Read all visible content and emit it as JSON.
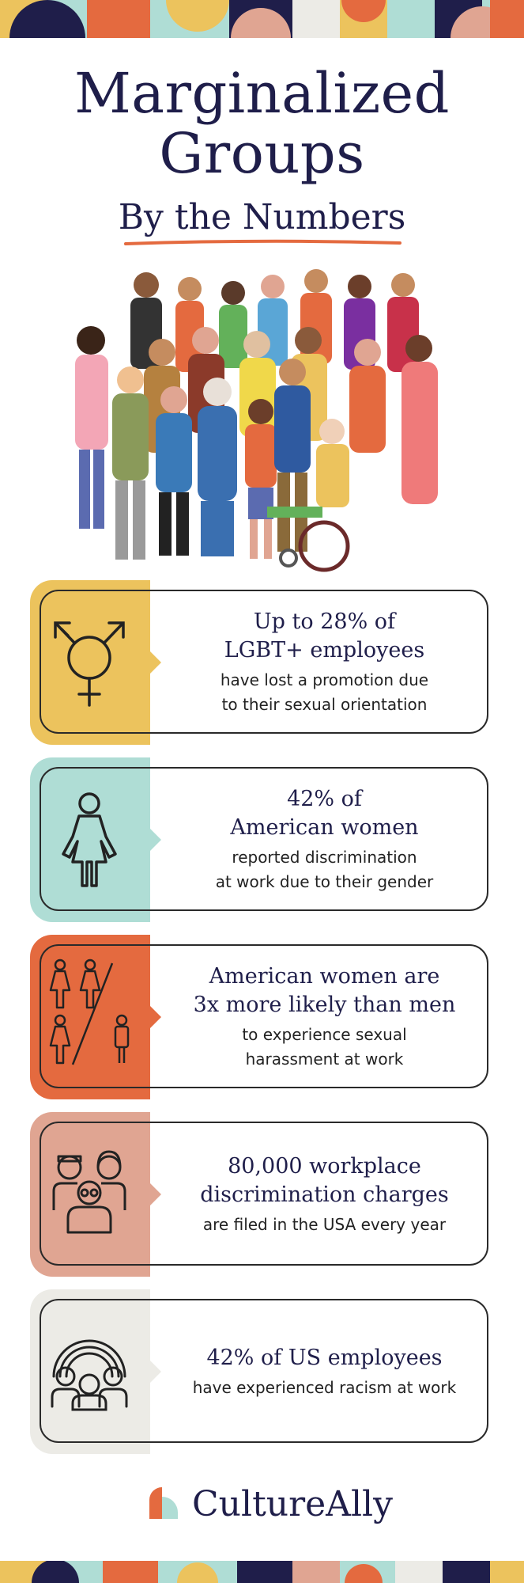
{
  "colors": {
    "navy": "#1f1e4a",
    "yellow": "#ecc35d",
    "mint": "#afddd5",
    "orange": "#e46a3f",
    "salmon": "#e0a592",
    "stone": "#ecebe6"
  },
  "header": {
    "title_line1": "Marginalized",
    "title_line2": "Groups",
    "subtitle": "By the Numbers"
  },
  "illustration": {
    "name": "diverse-crowd-illustration"
  },
  "stats": [
    {
      "icon": "transgender-symbol-icon",
      "color": "#ecc35d",
      "headline": "Up to 28% of\nLGBT+ employees",
      "detail": "have lost a promotion due\nto their sexual orientation"
    },
    {
      "icon": "woman-icon",
      "color": "#afddd5",
      "headline": "42% of\nAmerican women",
      "detail": "reported discrimination\nat work due to their gender"
    },
    {
      "icon": "three-women-vs-one-man-icon",
      "color": "#e46a3f",
      "headline": "American women are\n3x more likely than men",
      "detail": "to experience sexual\nharassment at work"
    },
    {
      "icon": "diverse-group-icon",
      "color": "#e0a592",
      "headline": "80,000 workplace\ndiscrimination charges",
      "detail": "are filed in the USA every year"
    },
    {
      "icon": "rainbow-people-icon",
      "color": "#ecebe6",
      "headline": "42% of US employees",
      "detail": "have experienced racism at work"
    }
  ],
  "footer": {
    "logo_text": "CultureAlly"
  }
}
